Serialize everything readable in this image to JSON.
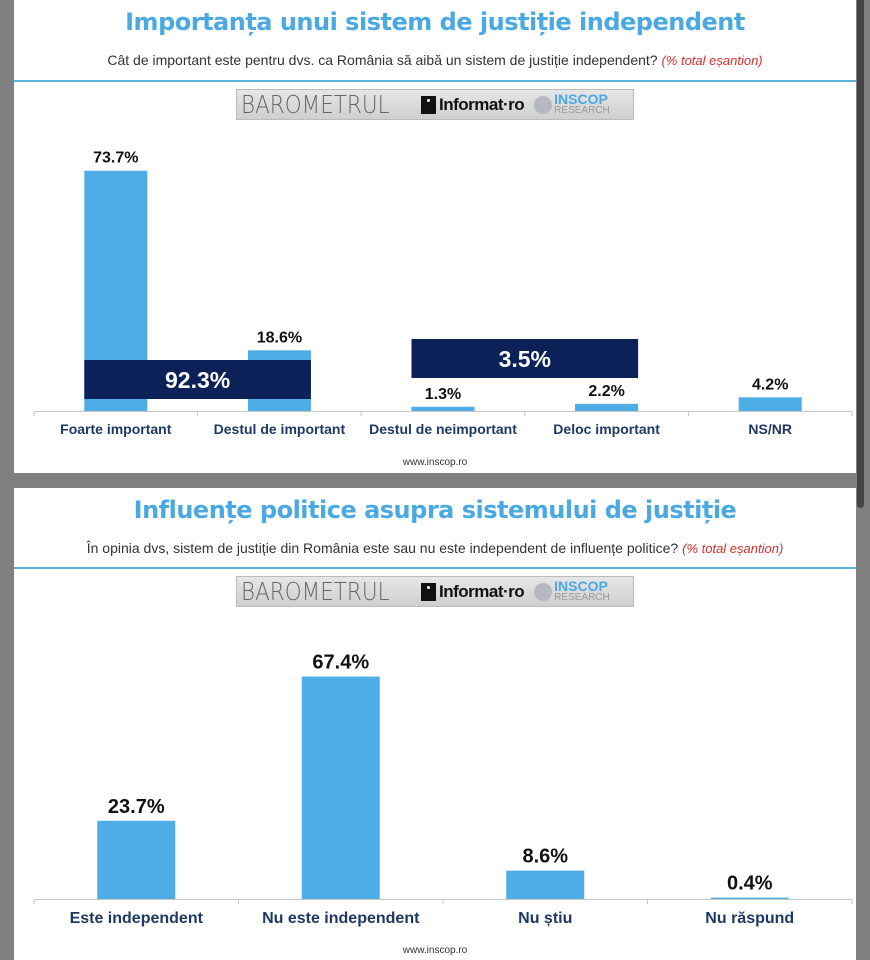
{
  "logo": {
    "text": "BAROMETRUL Informat.ro INSCOP RESEARCH"
  },
  "chart_data": [
    {
      "type": "bar",
      "title": "Importanța unui sistem de justiție independent",
      "subtitle": "Cât de important este pentru dvs. ca România să aibă un sistem de justiție independent?",
      "note": "(% total eșantion)",
      "categories": [
        "Foarte important",
        "Destul de important",
        "Destul de neimportant",
        "Deloc important",
        "NS/NR"
      ],
      "values": [
        73.7,
        18.6,
        1.3,
        2.2,
        4.2
      ],
      "value_labels": [
        "73.7%",
        "18.6%",
        "1.3%",
        "2.2%",
        "4.2%"
      ],
      "group_totals": [
        {
          "categories": [
            "Foarte important",
            "Destul de important"
          ],
          "value": 92.3,
          "label": "92.3%"
        },
        {
          "categories": [
            "Destul de neimportant",
            "Deloc important"
          ],
          "value": 3.5,
          "label": "3.5%"
        }
      ],
      "ylim": [
        0,
        80
      ],
      "grid": false,
      "footer": "www.inscop.ro",
      "colors": {
        "bar": "#4eace6",
        "total_box": "#0b2158",
        "title": "#4aa9e3",
        "note": "#d0302b"
      }
    },
    {
      "type": "bar",
      "title": "Influențe politice asupra sistemului de justiție",
      "subtitle": "În opinia dvs, sistem de justiție din România este sau nu este independent de influențe politice?",
      "note": "(% total eșantion)",
      "categories": [
        "Este independent",
        "Nu este independent",
        "Nu știu",
        "Nu răspund"
      ],
      "values": [
        23.7,
        67.4,
        8.6,
        0.4
      ],
      "value_labels": [
        "23.7%",
        "67.4%",
        "8.6%",
        "0.4%"
      ],
      "ylim": [
        0,
        80
      ],
      "grid": false,
      "footer": "www.inscop.ro",
      "colors": {
        "bar": "#4eace6",
        "title": "#4aa9e3",
        "note": "#d0302b"
      }
    }
  ]
}
